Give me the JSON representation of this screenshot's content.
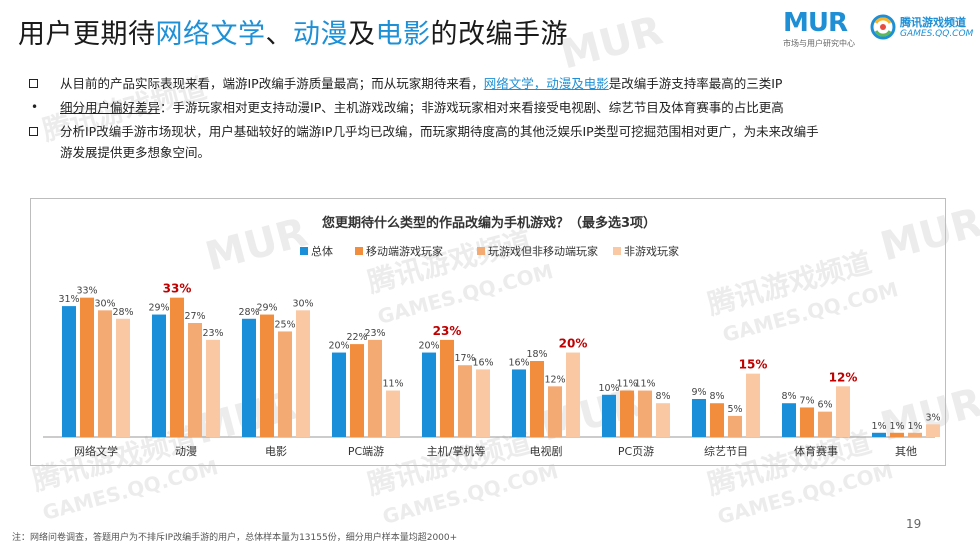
{
  "title": {
    "prefix": "用户更期待",
    "hl1": "网络文学",
    "sep": "、",
    "hl2": "动漫",
    "mid": "及",
    "hl3": "电影",
    "suffix": "的改编手游"
  },
  "logos": {
    "mur_text": "MUR",
    "mur_sub": "市场与用户研究中心",
    "qq_name": "腾讯游戏频道",
    "qq_url": "GAMES.QQ.COM"
  },
  "bullets": [
    {
      "marker": "box",
      "text_a": "从目前的产品实际表现来看，端游IP改编手游质量最高；而从玩家期待来看，",
      "link": "网络文学，动漫及电影",
      "text_b": "是改编手游支持率最高的三类IP"
    },
    {
      "marker": "dot",
      "underlined": "细分用户偏好差异",
      "text": "：手游玩家相对更支持动漫IP、主机游戏改编；非游戏玩家相对来看接受电视剧、综艺节目及体育赛事的占比更高"
    },
    {
      "marker": "box",
      "text_line1": "分析IP改编手游市场现状，用户基础较好的端游IP几乎均已改编，而玩家期待度高的其他泛娱乐IP类型可挖掘范围相对更广，为未来改编手",
      "text_line2": "游发展提供更多想象空间。"
    }
  ],
  "chart_data": {
    "type": "bar",
    "title": "您更期待什么类型的作品改编为手机游戏？（最多选3项）",
    "categories": [
      "网络文学",
      "动漫",
      "电影",
      "PC端游",
      "主机/掌机等",
      "电视剧",
      "PC页游",
      "综艺节目",
      "体育赛事",
      "其他"
    ],
    "series": [
      {
        "name": "总体",
        "color": "#1a8fd9",
        "values": [
          31,
          29,
          28,
          20,
          20,
          16,
          10,
          9,
          8,
          1
        ]
      },
      {
        "name": "移动端游戏玩家",
        "color": "#f28d3d",
        "values": [
          33,
          33,
          29,
          22,
          23,
          18,
          11,
          8,
          7,
          1
        ]
      },
      {
        "name": "玩游戏但非移动端玩家",
        "color": "#f4aa73",
        "values": [
          30,
          27,
          25,
          23,
          17,
          12,
          11,
          5,
          6,
          1
        ]
      },
      {
        "name": "非游戏玩家",
        "color": "#fac8a3",
        "values": [
          28,
          23,
          30,
          11,
          16,
          20,
          8,
          15,
          12,
          3
        ]
      }
    ],
    "value_suffix": "%",
    "highlights": [
      {
        "category": "动漫",
        "series": "移动端游戏玩家",
        "label": "33%"
      },
      {
        "category": "主机/掌机等",
        "series": "移动端游戏玩家",
        "label": "23%"
      },
      {
        "category": "电视剧",
        "series": "非游戏玩家",
        "label": "20%"
      },
      {
        "category": "综艺节目",
        "series": "非游戏玩家",
        "label": "15%"
      },
      {
        "category": "体育赛事",
        "series": "非游戏玩家",
        "label": "12%"
      }
    ],
    "highlight_color": "#c00000",
    "legend_position": "top",
    "grid": false
  },
  "footnote": "注：网络问卷调查，答题用户为不排斥IP改编手游的用户，总体样本量为13155份，细分用户样本量均超2000+",
  "page_number": "19",
  "watermarks": [
    "MUR",
    "腾讯游戏频道",
    "GAMES.QQ.COM"
  ]
}
